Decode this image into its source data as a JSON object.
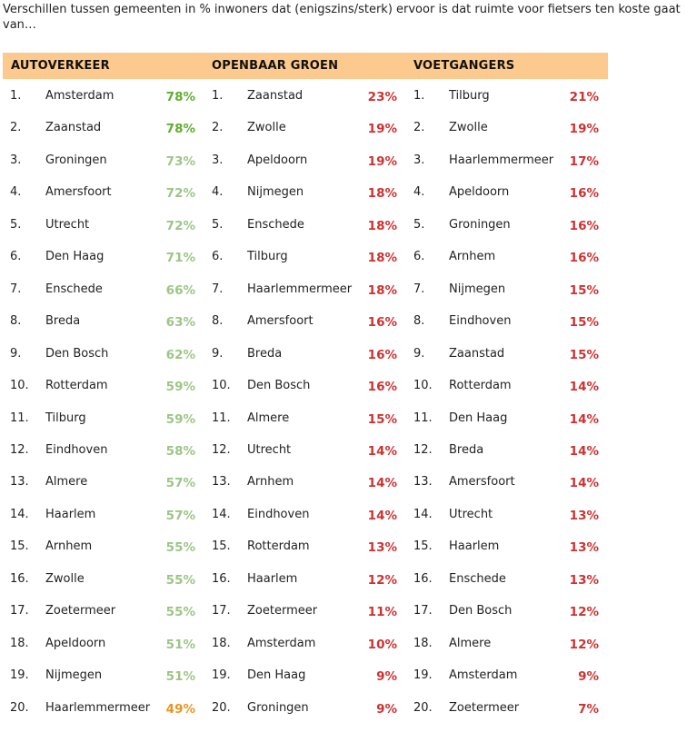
{
  "title": "Verschillen tussen gemeenten in % inwoners dat (enigszins/sterk) ervoor is dat ruimte voor fietsers ten koste gaat van…",
  "columns": [
    "AUTOVERKEER",
    "OPENBAAR GROEN",
    "VOETGANGERS"
  ],
  "colors": {
    "header_bg": "#fcc98f",
    "high_green": "#5fae2e",
    "light_green": "#9dc585",
    "orange": "#e8951f",
    "red": "#cc3333"
  },
  "chart_data": {
    "type": "table",
    "title": "Verschillen tussen gemeenten in % inwoners dat (enigszins/sterk) ervoor is dat ruimte voor fietsers ten koste gaat van…",
    "columns": [
      {
        "name": "AUTOVERKEER",
        "rows": [
          {
            "rank": "1.",
            "city": "Amsterdam",
            "value": "78%",
            "color": "high_green"
          },
          {
            "rank": "2.",
            "city": "Zaanstad",
            "value": "78%",
            "color": "high_green"
          },
          {
            "rank": "3.",
            "city": "Groningen",
            "value": "73%",
            "color": "light_green"
          },
          {
            "rank": "4.",
            "city": "Amersfoort",
            "value": "72%",
            "color": "light_green"
          },
          {
            "rank": "5.",
            "city": "Utrecht",
            "value": "72%",
            "color": "light_green"
          },
          {
            "rank": "6.",
            "city": "Den Haag",
            "value": "71%",
            "color": "light_green"
          },
          {
            "rank": "7.",
            "city": "Enschede",
            "value": "66%",
            "color": "light_green"
          },
          {
            "rank": "8.",
            "city": "Breda",
            "value": "63%",
            "color": "light_green"
          },
          {
            "rank": "9.",
            "city": "Den Bosch",
            "value": "62%",
            "color": "light_green"
          },
          {
            "rank": "10.",
            "city": "Rotterdam",
            "value": "59%",
            "color": "light_green"
          },
          {
            "rank": "11.",
            "city": "Tilburg",
            "value": "59%",
            "color": "light_green"
          },
          {
            "rank": "12.",
            "city": "Eindhoven",
            "value": "58%",
            "color": "light_green"
          },
          {
            "rank": "13.",
            "city": "Almere",
            "value": "57%",
            "color": "light_green"
          },
          {
            "rank": "14.",
            "city": "Haarlem",
            "value": "57%",
            "color": "light_green"
          },
          {
            "rank": "15.",
            "city": "Arnhem",
            "value": "55%",
            "color": "light_green"
          },
          {
            "rank": "16.",
            "city": "Zwolle",
            "value": "55%",
            "color": "light_green"
          },
          {
            "rank": "17.",
            "city": "Zoetermeer",
            "value": "55%",
            "color": "light_green"
          },
          {
            "rank": "18.",
            "city": "Apeldoorn",
            "value": "51%",
            "color": "light_green"
          },
          {
            "rank": "19.",
            "city": "Nijmegen",
            "value": "51%",
            "color": "light_green"
          },
          {
            "rank": "20.",
            "city": "Haarlemmermeer",
            "value": "49%",
            "color": "orange"
          }
        ]
      },
      {
        "name": "OPENBAAR GROEN",
        "rows": [
          {
            "rank": "1.",
            "city": "Zaanstad",
            "value": "23%",
            "color": "red"
          },
          {
            "rank": "2.",
            "city": "Zwolle",
            "value": "19%",
            "color": "red"
          },
          {
            "rank": "3.",
            "city": "Apeldoorn",
            "value": "19%",
            "color": "red"
          },
          {
            "rank": "4.",
            "city": "Nijmegen",
            "value": "18%",
            "color": "red"
          },
          {
            "rank": "5.",
            "city": "Enschede",
            "value": "18%",
            "color": "red"
          },
          {
            "rank": "6.",
            "city": "Tilburg",
            "value": "18%",
            "color": "red"
          },
          {
            "rank": "7.",
            "city": "Haarlemmermeer",
            "value": "18%",
            "color": "red"
          },
          {
            "rank": "8.",
            "city": "Amersfoort",
            "value": "16%",
            "color": "red"
          },
          {
            "rank": "9.",
            "city": "Breda",
            "value": "16%",
            "color": "red"
          },
          {
            "rank": "10.",
            "city": "Den Bosch",
            "value": "16%",
            "color": "red"
          },
          {
            "rank": "11.",
            "city": "Almere",
            "value": "15%",
            "color": "red"
          },
          {
            "rank": "12.",
            "city": "Utrecht",
            "value": "14%",
            "color": "red"
          },
          {
            "rank": "13.",
            "city": "Arnhem",
            "value": "14%",
            "color": "red"
          },
          {
            "rank": "14.",
            "city": "Eindhoven",
            "value": "14%",
            "color": "red"
          },
          {
            "rank": "15.",
            "city": "Rotterdam",
            "value": "13%",
            "color": "red"
          },
          {
            "rank": "16.",
            "city": "Haarlem",
            "value": "12%",
            "color": "red"
          },
          {
            "rank": "17.",
            "city": "Zoetermeer",
            "value": "11%",
            "color": "red"
          },
          {
            "rank": "18.",
            "city": "Amsterdam",
            "value": "10%",
            "color": "red"
          },
          {
            "rank": "19.",
            "city": "Den Haag",
            "value": "9%",
            "color": "red"
          },
          {
            "rank": "20.",
            "city": "Groningen",
            "value": "9%",
            "color": "red"
          }
        ]
      },
      {
        "name": "VOETGANGERS",
        "rows": [
          {
            "rank": "1.",
            "city": "Tilburg",
            "value": "21%",
            "color": "red"
          },
          {
            "rank": "2.",
            "city": "Zwolle",
            "value": "19%",
            "color": "red"
          },
          {
            "rank": "3.",
            "city": "Haarlemmermeer",
            "value": "17%",
            "color": "red"
          },
          {
            "rank": "4.",
            "city": "Apeldoorn",
            "value": "16%",
            "color": "red"
          },
          {
            "rank": "5.",
            "city": "Groningen",
            "value": "16%",
            "color": "red"
          },
          {
            "rank": "6.",
            "city": "Arnhem",
            "value": "16%",
            "color": "red"
          },
          {
            "rank": "7.",
            "city": "Nijmegen",
            "value": "15%",
            "color": "red"
          },
          {
            "rank": "8.",
            "city": "Eindhoven",
            "value": "15%",
            "color": "red"
          },
          {
            "rank": "9.",
            "city": "Zaanstad",
            "value": "15%",
            "color": "red"
          },
          {
            "rank": "10.",
            "city": "Rotterdam",
            "value": "14%",
            "color": "red"
          },
          {
            "rank": "11.",
            "city": "Den Haag",
            "value": "14%",
            "color": "red"
          },
          {
            "rank": "12.",
            "city": "Breda",
            "value": "14%",
            "color": "red"
          },
          {
            "rank": "13.",
            "city": "Amersfoort",
            "value": "14%",
            "color": "red"
          },
          {
            "rank": "14.",
            "city": "Utrecht",
            "value": "13%",
            "color": "red"
          },
          {
            "rank": "15.",
            "city": "Haarlem",
            "value": "13%",
            "color": "red"
          },
          {
            "rank": "16.",
            "city": "Enschede",
            "value": "13%",
            "color": "red"
          },
          {
            "rank": "17.",
            "city": "Den Bosch",
            "value": "12%",
            "color": "red"
          },
          {
            "rank": "18.",
            "city": "Almere",
            "value": "12%",
            "color": "red"
          },
          {
            "rank": "19.",
            "city": "Amsterdam",
            "value": "9%",
            "color": "red"
          },
          {
            "rank": "20.",
            "city": "Zoetermeer",
            "value": "7%",
            "color": "red"
          }
        ]
      }
    ]
  }
}
